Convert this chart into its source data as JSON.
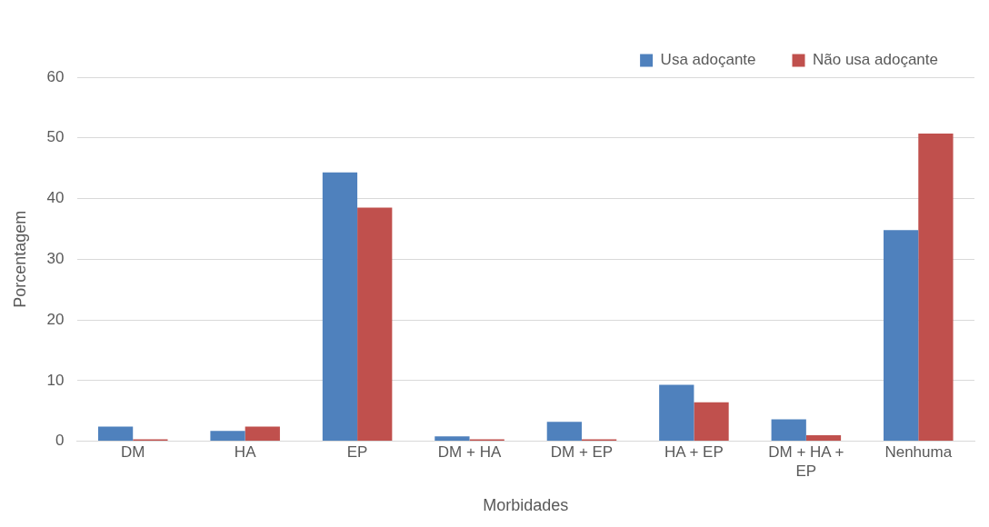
{
  "chart_data": {
    "type": "bar",
    "xlabel": "Morbidades",
    "ylabel": "Porcentagem",
    "categories": [
      "DM",
      "HA",
      "EP",
      "DM + HA",
      "DM + EP",
      "HA + EP",
      "DM + HA + EP",
      "Nenhuma"
    ],
    "series": [
      {
        "name": "Usa adoçante",
        "color": "#4f81bd",
        "values": [
          2.4,
          1.7,
          44.3,
          0.8,
          3.2,
          9.3,
          3.6,
          34.8
        ]
      },
      {
        "name": "Não usa adoçante",
        "color": "#c0504d",
        "values": [
          0.3,
          2.4,
          38.5,
          0.3,
          0.3,
          6.4,
          1.0,
          50.7
        ]
      }
    ],
    "ylim": [
      0,
      60
    ],
    "yticks": [
      0,
      10,
      20,
      30,
      40,
      50,
      60
    ],
    "grid": "y",
    "legend": "top right"
  }
}
